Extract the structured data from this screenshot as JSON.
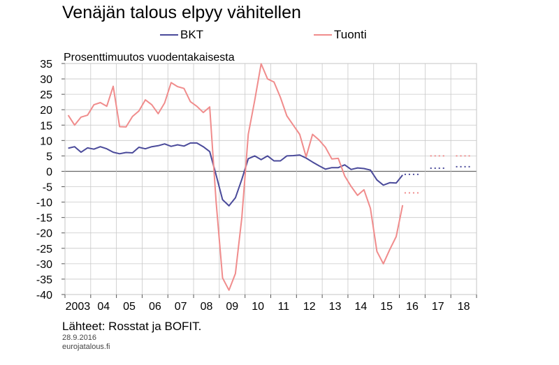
{
  "header": {
    "title": "Venäjän talous elpyy vähitellen",
    "unit_label": "Prosenttimuutos vuodentakaisesta"
  },
  "footer": {
    "source": "Lähteet: Rosstat ja BOFIT.",
    "date": "28.9.2016",
    "site": "eurojatalous.fi"
  },
  "colors": {
    "bkt": "#4a4a9a",
    "tuonti": "#f08c8c",
    "grid": "#c8c8c8",
    "axis": "#555555"
  },
  "chart_data": {
    "type": "line",
    "title": "Venäjän talous elpyy vähitellen",
    "ylabel": "Prosenttimuutos vuodentakaisesta",
    "xlabel": "",
    "ylim": [
      -40,
      35
    ],
    "xlim": [
      2003.0,
      2019.0
    ],
    "yticks": [
      35,
      30,
      25,
      20,
      15,
      10,
      5,
      0,
      -5,
      -10,
      -15,
      -20,
      -25,
      -30,
      -35,
      -40
    ],
    "xtick_labels": [
      {
        "label": "2003",
        "x": 2003.5
      },
      {
        "label": "04",
        "x": 2004.5
      },
      {
        "label": "05",
        "x": 2005.5
      },
      {
        "label": "06",
        "x": 2006.5
      },
      {
        "label": "07",
        "x": 2007.5
      },
      {
        "label": "08",
        "x": 2008.5
      },
      {
        "label": "09",
        "x": 2009.5
      },
      {
        "label": "10",
        "x": 2010.5
      },
      {
        "label": "11",
        "x": 2011.5
      },
      {
        "label": "12",
        "x": 2012.5
      },
      {
        "label": "13",
        "x": 2013.5
      },
      {
        "label": "14",
        "x": 2014.5
      },
      {
        "label": "15",
        "x": 2015.5
      },
      {
        "label": "16",
        "x": 2016.5
      },
      {
        "label": "17",
        "x": 2017.5
      },
      {
        "label": "18",
        "x": 2018.5
      }
    ],
    "grid": true,
    "legend_position": "top",
    "series": [
      {
        "name": "BKT",
        "color": "#4a4a9a",
        "x": [
          2003.125,
          2003.375,
          2003.625,
          2003.875,
          2004.125,
          2004.375,
          2004.625,
          2004.875,
          2005.125,
          2005.375,
          2005.625,
          2005.875,
          2006.125,
          2006.375,
          2006.625,
          2006.875,
          2007.125,
          2007.375,
          2007.625,
          2007.875,
          2008.125,
          2008.375,
          2008.625,
          2008.875,
          2009.125,
          2009.375,
          2009.625,
          2009.875,
          2010.125,
          2010.375,
          2010.625,
          2010.875,
          2011.125,
          2011.375,
          2011.625,
          2011.875,
          2012.125,
          2012.375,
          2012.625,
          2012.875,
          2013.125,
          2013.375,
          2013.625,
          2013.875,
          2014.125,
          2014.375,
          2014.625,
          2014.875,
          2015.125,
          2015.375,
          2015.625,
          2015.875,
          2016.125
        ],
        "values": [
          7.5,
          8.0,
          6.2,
          7.6,
          7.2,
          8.0,
          7.3,
          6.2,
          5.7,
          6.1,
          6.0,
          7.8,
          7.3,
          8.0,
          8.3,
          8.9,
          8.1,
          8.6,
          8.2,
          9.2,
          9.2,
          8.0,
          6.4,
          -1.2,
          -9.2,
          -11.2,
          -8.6,
          -2.6,
          4.1,
          5.0,
          3.8,
          5.0,
          3.4,
          3.4,
          5.0,
          5.1,
          5.3,
          4.3,
          3.0,
          1.8,
          0.7,
          1.2,
          1.2,
          2.1,
          0.6,
          1.1,
          0.9,
          0.4,
          -2.8,
          -4.5,
          -3.7,
          -3.8,
          -1.2
        ],
        "projections": [
          {
            "x_start": 2016.2,
            "x_end": 2016.75,
            "value": -1.0
          },
          {
            "x_start": 2017.2,
            "x_end": 2017.75,
            "value": 1.0
          },
          {
            "x_start": 2018.2,
            "x_end": 2018.75,
            "value": 1.5
          }
        ]
      },
      {
        "name": "Tuonti",
        "color": "#f08c8c",
        "x": [
          2003.125,
          2003.375,
          2003.625,
          2003.875,
          2004.125,
          2004.375,
          2004.625,
          2004.875,
          2005.125,
          2005.375,
          2005.625,
          2005.875,
          2006.125,
          2006.375,
          2006.625,
          2006.875,
          2007.125,
          2007.375,
          2007.625,
          2007.875,
          2008.125,
          2008.375,
          2008.625,
          2008.875,
          2009.125,
          2009.375,
          2009.625,
          2009.875,
          2010.125,
          2010.375,
          2010.625,
          2010.875,
          2011.125,
          2011.375,
          2011.625,
          2011.875,
          2012.125,
          2012.375,
          2012.625,
          2012.875,
          2013.125,
          2013.375,
          2013.625,
          2013.875,
          2014.125,
          2014.375,
          2014.625,
          2014.875,
          2015.125,
          2015.375,
          2015.625,
          2015.875,
          2016.125
        ],
        "values": [
          18.2,
          15.0,
          17.6,
          18.2,
          21.6,
          22.3,
          21.1,
          27.6,
          14.5,
          14.4,
          17.8,
          19.6,
          23.2,
          21.6,
          18.7,
          22.2,
          28.8,
          27.5,
          26.9,
          22.6,
          21.1,
          19.1,
          20.9,
          -10.0,
          -34.6,
          -38.6,
          -33.2,
          -15.0,
          12.0,
          23.0,
          34.9,
          30.0,
          29.0,
          24.0,
          18.0,
          15.0,
          12.0,
          4.7,
          12.0,
          10.2,
          7.8,
          4.0,
          4.2,
          -1.5,
          -4.9,
          -7.8,
          -6.0,
          -12.0,
          -26.0,
          -30.0,
          -25.4,
          -21.2,
          -11.0
        ],
        "projections": [
          {
            "x_start": 2016.2,
            "x_end": 2016.75,
            "value": -7.0
          },
          {
            "x_start": 2017.2,
            "x_end": 2017.75,
            "value": 5.0
          },
          {
            "x_start": 2018.2,
            "x_end": 2018.75,
            "value": 5.0
          }
        ]
      }
    ]
  }
}
